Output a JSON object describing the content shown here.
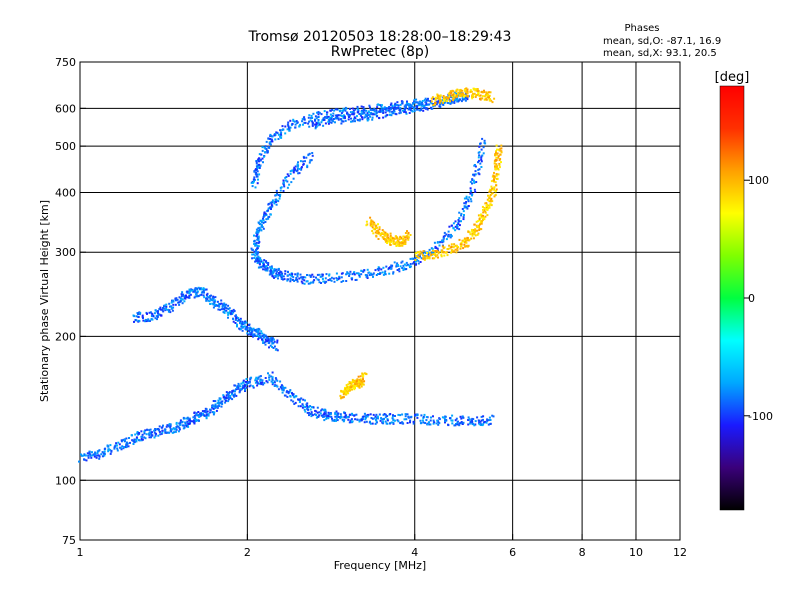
{
  "chart_data": {
    "type": "scatter",
    "title": "Tromsø 20120503 18:28:00–18:29:43",
    "subtitle": "RwPretec (8p)",
    "xlabel": "Frequency [MHz]",
    "ylabel": "Stationary phase Virtual Height [km]",
    "x_scale": "log",
    "y_scale": "log",
    "xlim": [
      1,
      12
    ],
    "ylim": [
      75,
      750
    ],
    "x_ticks": [
      1,
      2,
      4,
      6,
      8,
      10,
      12
    ],
    "x_tick_labels": [
      "1",
      "2",
      "4",
      "6",
      "8",
      "10",
      "12"
    ],
    "y_ticks": [
      75,
      100,
      200,
      300,
      400,
      500,
      600,
      750
    ],
    "y_tick_labels": [
      "75",
      "100",
      "200",
      "300",
      "400",
      "500",
      "600",
      "750"
    ],
    "grid": true,
    "info_box": {
      "heading": "Phases",
      "line1": "mean, sd,O: -87.1, 16.9",
      "line2": "mean, sd,X:  93.1, 20.5"
    },
    "colorbar": {
      "label": "[deg]",
      "range": [
        -180,
        180
      ],
      "ticks": [
        -100,
        0,
        100
      ],
      "tick_labels": [
        "-100",
        "0",
        "100"
      ],
      "colors": [
        "#000000",
        "#3a007a",
        "#1a1aff",
        "#00a8ff",
        "#00ffff",
        "#00ff40",
        "#80ff00",
        "#ffff00",
        "#ffa000",
        "#ff3000",
        "#ff0000"
      ]
    },
    "series": [
      {
        "mode": "O",
        "mean_phase_deg": -87.1,
        "traces": [
          {
            "x": [
              1.0,
              1.1,
              1.2,
              1.3,
              1.4,
              1.5,
              1.6,
              1.7,
              1.8,
              1.9,
              2.0,
              2.2,
              2.4,
              2.6,
              2.8,
              3.0,
              3.3,
              3.6,
              4.0,
              4.5,
              5.0,
              5.5
            ],
            "y": [
              112,
              115,
              120,
              125,
              128,
              130,
              135,
              140,
              148,
              155,
              160,
              165,
              150,
              140,
              137,
              136,
              135,
              135,
              135,
              134,
              134,
              134
            ]
          },
          {
            "x": [
              1.25,
              1.35,
              1.45,
              1.55,
              1.65,
              1.75,
              1.85,
              1.95,
              2.05,
              2.15,
              2.25
            ],
            "y": [
              220,
              222,
              232,
              246,
              250,
              236,
              226,
              212,
              205,
              198,
              192
            ]
          },
          {
            "x": [
              2.05,
              2.1,
              2.2,
              2.3,
              2.5,
              2.8,
              3.2,
              3.6,
              4.0,
              4.4,
              4.8,
              5.1,
              5.3
            ],
            "y": [
              300,
              285,
              275,
              270,
              265,
              265,
              270,
              278,
              288,
              310,
              350,
              420,
              520
            ]
          },
          {
            "x": [
              2.05,
              2.1,
              2.2,
              2.4,
              2.7,
              3.0,
              3.4,
              3.8,
              4.2
            ],
            "y": [
              420,
              470,
              520,
              560,
              580,
              590,
              600,
              610,
              620
            ]
          },
          {
            "x": [
              2.6,
              2.9,
              3.2,
              3.5,
              3.8,
              4.1,
              4.4,
              4.7,
              5.0
            ],
            "y": [
              560,
              570,
              580,
              590,
              600,
              610,
              620,
              635,
              640
            ]
          },
          {
            "x": [
              2.05,
              2.1,
              2.2,
              2.4,
              2.6
            ],
            "y": [
              305,
              340,
              380,
              440,
              480
            ]
          }
        ]
      },
      {
        "mode": "X",
        "mean_phase_deg": 93.1,
        "traces": [
          {
            "x": [
              4.0,
              4.4,
              4.8,
              5.1,
              5.3,
              5.5,
              5.6,
              5.65
            ],
            "y": [
              295,
              300,
              310,
              330,
              360,
              400,
              450,
              500
            ]
          },
          {
            "x": [
              4.3,
              4.6,
              4.9,
              5.2,
              5.5
            ],
            "y": [
              625,
              640,
              650,
              645,
              635
            ]
          },
          {
            "x": [
              3.3,
              3.45,
              3.6,
              3.75,
              3.9
            ],
            "y": [
              350,
              330,
              320,
              315,
              330
            ]
          },
          {
            "x": [
              2.95,
              3.05,
              3.15,
              3.25
            ],
            "y": [
              152,
              158,
              160,
              165
            ]
          }
        ]
      }
    ]
  }
}
